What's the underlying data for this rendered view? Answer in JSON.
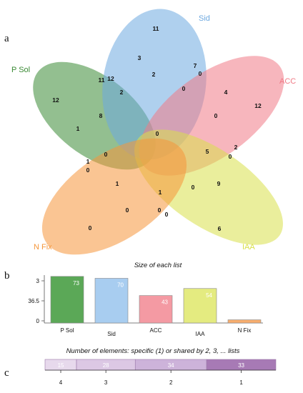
{
  "panels": {
    "a": "a",
    "b": "b",
    "c": "c"
  },
  "venn": {
    "sets": [
      {
        "name": "P Sol",
        "color": "#3a8a34"
      },
      {
        "name": "Sid",
        "color": "#6ea9e0"
      },
      {
        "name": "ACC",
        "color": "#f07a86"
      },
      {
        "name": "IAA",
        "color": "#d8e04a"
      },
      {
        "name": "N Fix",
        "color": "#f5963b"
      }
    ],
    "counts": [
      "11",
      "3",
      "2",
      "7",
      "0",
      "12",
      "11",
      "12",
      "2",
      "0",
      "4",
      "12",
      "8",
      "1",
      "0",
      "0",
      "2",
      "0",
      "5",
      "0",
      "1",
      "0",
      "9",
      "1",
      "1",
      "0",
      "0",
      "0",
      "0",
      "6",
      "0"
    ]
  },
  "chart_data": [
    {
      "type": "bar",
      "title": "Size of each list",
      "categories": [
        "P Sol",
        "Sid",
        "ACC",
        "IAA",
        "N Fix"
      ],
      "values": [
        73,
        70,
        43,
        54,
        5
      ],
      "colors": [
        "#5ba857",
        "#a8cdf0",
        "#f49aa3",
        "#e4eb80",
        "#f7ad6e"
      ],
      "yticks": [
        "3",
        "36.5",
        "0"
      ]
    },
    {
      "type": "bar",
      "title": "Number of elements: specific (1) or shared by 2, 3, ... lists",
      "categories": [
        "4",
        "3",
        "2",
        "1"
      ],
      "values": [
        15,
        28,
        34,
        33
      ],
      "colors": [
        "#e7d9ec",
        "#dcc8e4",
        "#cdb3da",
        "#a77ab5"
      ]
    }
  ]
}
